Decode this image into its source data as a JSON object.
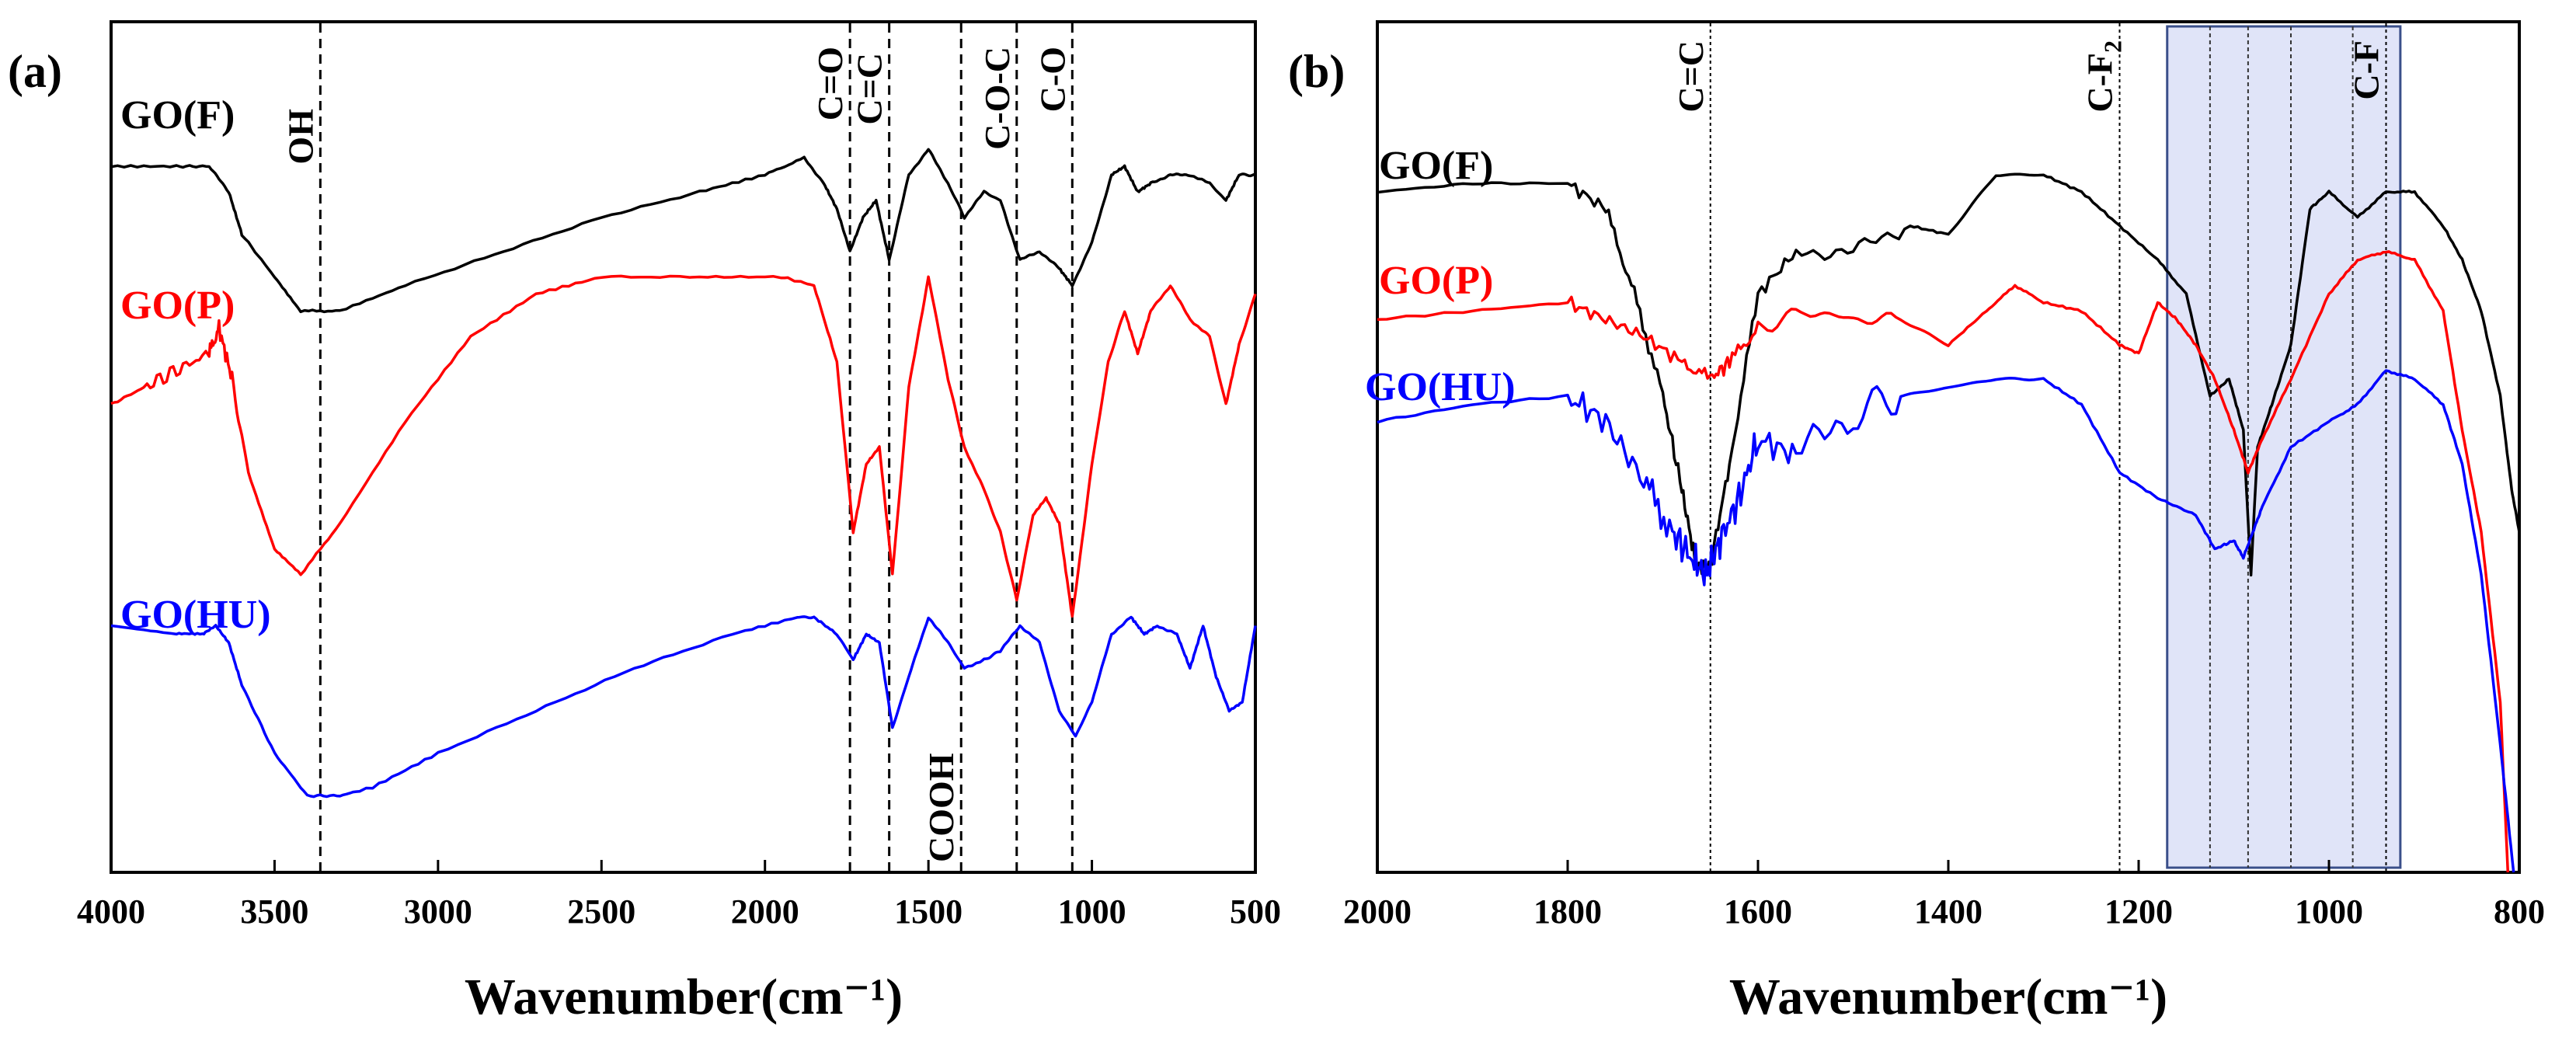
{
  "figure": {
    "panels": [
      "(a)",
      "(b)"
    ]
  },
  "chart_data": [
    {
      "type": "line",
      "panel_label": "(a)",
      "xlabel": "Wavenumber(cm⁻¹)",
      "ylabel": "",
      "xlim": [
        4000,
        500
      ],
      "x_reversed": true,
      "ylim": [
        0,
        100
      ],
      "yunits": "arbitrary (offset transmittance)",
      "xticks": [
        "4000",
        "3500",
        "3000",
        "2500",
        "2000",
        "1500",
        "1000",
        "500"
      ],
      "xtick_values": [
        4000,
        3500,
        3000,
        2500,
        2000,
        1500,
        1000,
        500
      ],
      "series": [
        {
          "name": "GO(F)",
          "color": "#000000",
          "x": [
            4000,
            3800,
            3700,
            3640,
            3600,
            3500,
            3420,
            3300,
            3100,
            2800,
            2500,
            2200,
            2000,
            1880,
            1820,
            1780,
            1740,
            1700,
            1660,
            1620,
            1560,
            1500,
            1440,
            1390,
            1330,
            1280,
            1220,
            1160,
            1100,
            1060,
            1000,
            940,
            900,
            860,
            820,
            760,
            700,
            640,
            590,
            550,
            500
          ],
          "y": [
            83,
            83,
            83,
            80,
            75,
            70,
            66,
            66,
            69,
            73,
            77,
            80,
            82,
            84,
            81,
            78,
            73,
            77,
            79,
            72,
            82,
            85,
            81,
            77,
            80,
            79,
            72,
            73,
            71,
            69,
            74,
            82,
            83,
            80,
            81,
            82,
            82,
            81,
            79,
            82,
            82
          ]
        },
        {
          "name": "GO(P)",
          "color": "#ff0000",
          "x": [
            4000,
            3900,
            3800,
            3700,
            3670,
            3630,
            3580,
            3500,
            3420,
            3300,
            3100,
            2900,
            2700,
            2500,
            2200,
            1950,
            1850,
            1780,
            1730,
            1690,
            1650,
            1610,
            1560,
            1500,
            1440,
            1390,
            1330,
            1280,
            1230,
            1180,
            1140,
            1100,
            1060,
            1000,
            950,
            900,
            860,
            820,
            760,
            700,
            640,
            590,
            550,
            500
          ],
          "y": [
            55,
            57,
            59,
            61,
            64,
            58,
            47,
            38,
            35,
            41,
            53,
            63,
            68,
            70,
            70,
            70,
            69,
            60,
            40,
            48,
            50,
            35,
            57,
            70,
            58,
            50,
            45,
            40,
            32,
            42,
            44,
            41,
            30,
            48,
            60,
            66,
            61,
            66,
            69,
            65,
            63,
            55,
            62,
            68
          ]
        },
        {
          "name": "GO(HU)",
          "color": "#0000ff",
          "x": [
            4000,
            3800,
            3720,
            3680,
            3640,
            3600,
            3500,
            3400,
            3300,
            3200,
            3000,
            2700,
            2400,
            2100,
            1900,
            1850,
            1780,
            1730,
            1690,
            1650,
            1610,
            1560,
            1500,
            1440,
            1390,
            1330,
            1280,
            1220,
            1160,
            1100,
            1050,
            1000,
            940,
            880,
            840,
            800,
            740,
            700,
            660,
            620,
            580,
            540,
            500
          ],
          "y": [
            29,
            28,
            28,
            29,
            27,
            22,
            14,
            9,
            9,
            10,
            14,
            19,
            24,
            28,
            30,
            30,
            28,
            25,
            28,
            27,
            17,
            23,
            30,
            27,
            24,
            25,
            26,
            29,
            27,
            19,
            16,
            20,
            28,
            30,
            28,
            29,
            28,
            24,
            29,
            23,
            19,
            20,
            29
          ]
        }
      ],
      "annotations": [
        {
          "label": "OH",
          "x": 3360
        },
        {
          "label": "C=O",
          "x": 1740
        },
        {
          "label": "C=C",
          "x": 1620
        },
        {
          "label": "COOH",
          "x": 1400
        },
        {
          "label": "C-O-C",
          "x": 1230
        },
        {
          "label": "C-O",
          "x": 1060
        }
      ]
    },
    {
      "type": "line",
      "panel_label": "(b)",
      "xlabel": "Wavenumber(cm⁻¹)",
      "ylabel": "",
      "xlim": [
        2000,
        800
      ],
      "x_reversed": true,
      "ylim": [
        0,
        100
      ],
      "yunits": "arbitrary (offset transmittance)",
      "xticks": [
        "2000",
        "1800",
        "1600",
        "1400",
        "1200",
        "1000",
        "800"
      ],
      "xtick_values": [
        2000,
        1800,
        1600,
        1400,
        1200,
        1000,
        800
      ],
      "series": [
        {
          "name": "GO(F)",
          "color": "#000000",
          "x": [
            2000,
            1900,
            1800,
            1760,
            1730,
            1700,
            1680,
            1665,
            1650,
            1630,
            1600,
            1560,
            1500,
            1440,
            1400,
            1350,
            1300,
            1260,
            1220,
            1180,
            1150,
            1125,
            1105,
            1090,
            1082,
            1075,
            1060,
            1040,
            1020,
            1000,
            970,
            940,
            910,
            880,
            860,
            840,
            820,
            808,
            800
          ],
          "y": [
            80,
            81,
            81,
            78,
            68,
            56,
            45,
            36,
            36,
            48,
            68,
            73,
            73,
            76,
            75,
            82,
            82,
            80,
            76,
            72,
            68,
            56,
            58,
            52,
            35,
            50,
            55,
            62,
            78,
            80,
            77,
            80,
            80,
            76,
            72,
            66,
            56,
            45,
            40
          ]
        },
        {
          "name": "GO(P)",
          "color": "#ff0000",
          "x": [
            2000,
            1900,
            1800,
            1760,
            1720,
            1680,
            1650,
            1630,
            1600,
            1550,
            1500,
            1450,
            1400,
            1360,
            1330,
            1300,
            1260,
            1220,
            1200,
            1180,
            1160,
            1140,
            1120,
            1100,
            1085,
            1070,
            1040,
            1000,
            970,
            940,
            910,
            880,
            860,
            840,
            820,
            812
          ],
          "y": [
            65,
            66,
            67,
            65,
            63,
            60,
            58,
            60,
            64,
            66,
            65,
            65,
            62,
            66,
            69,
            67,
            66,
            62,
            61,
            67,
            65,
            62,
            58,
            52,
            47,
            51,
            58,
            68,
            72,
            73,
            72,
            66,
            52,
            40,
            20,
            0
          ]
        },
        {
          "name": "GO(HU)",
          "color": "#0000ff",
          "x": [
            2000,
            1900,
            1800,
            1760,
            1720,
            1690,
            1670,
            1655,
            1640,
            1620,
            1600,
            1560,
            1500,
            1450,
            1400,
            1350,
            1300,
            1260,
            1220,
            1180,
            1140,
            1120,
            1100,
            1090,
            1080,
            1070,
            1040,
            1000,
            970,
            940,
            910,
            880,
            860,
            840,
            820,
            806
          ],
          "y": [
            53,
            55,
            56,
            53,
            46,
            40,
            37,
            35,
            39,
            44,
            51,
            49,
            54,
            56,
            57,
            58,
            58,
            55,
            47,
            44,
            42,
            38,
            39,
            37,
            40,
            43,
            50,
            53,
            55,
            59,
            58,
            55,
            48,
            35,
            15,
            0
          ]
        }
      ],
      "annotations": [
        {
          "label": "C=C",
          "x": 1650
        },
        {
          "label": "C-F2",
          "x": 1220
        },
        {
          "label": "C-F",
          "x": 940
        }
      ],
      "highlight_band": [
        1170,
        925
      ],
      "guide_lines": [
        1125,
        1085,
        1040,
        975
      ]
    }
  ]
}
